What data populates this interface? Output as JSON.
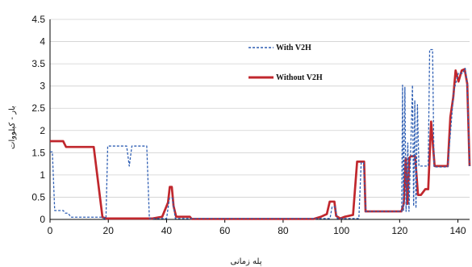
{
  "chart_data": {
    "type": "line",
    "title": "",
    "xlabel": "پله زمانی",
    "ylabel": "بار - کیلووات",
    "xlim": [
      0,
      144
    ],
    "ylim": [
      0,
      4.5
    ],
    "x_ticks": [
      "0",
      "20",
      "40",
      "60",
      "80",
      "100",
      "120",
      "140"
    ],
    "y_ticks": [
      "0",
      "0.5",
      "1",
      "1.5",
      "2",
      "2.5",
      "3",
      "3.5",
      "4",
      "4.5"
    ],
    "grid": "horizontal",
    "legend_position": "upper-right-inside",
    "series": [
      {
        "name": "With V2H",
        "color": "#2f5fb4",
        "style": "dashed",
        "points": [
          [
            0,
            1.52
          ],
          [
            0.8,
            1.52
          ],
          [
            1.6,
            0.2
          ],
          [
            4.5,
            0.2
          ],
          [
            5.3,
            0.14
          ],
          [
            6.2,
            0.14
          ],
          [
            7.2,
            0.05
          ],
          [
            18,
            0.05
          ],
          [
            18.6,
            0.02
          ],
          [
            19.2,
            0.02
          ],
          [
            19.8,
            1.65
          ],
          [
            26.3,
            1.65
          ],
          [
            27.2,
            1.2
          ],
          [
            28.1,
            1.65
          ],
          [
            33.2,
            1.65
          ],
          [
            34.1,
            0.02
          ],
          [
            40,
            0.02
          ],
          [
            41,
            0.48
          ],
          [
            42,
            0.48
          ],
          [
            43,
            0.02
          ],
          [
            96.1,
            0.02
          ],
          [
            96.8,
            0.28
          ],
          [
            97.9,
            0.28
          ],
          [
            98.6,
            0.02
          ],
          [
            106,
            0.02
          ],
          [
            106.8,
            1.28
          ],
          [
            107.6,
            1.28
          ],
          [
            108.4,
            0.18
          ],
          [
            120.7,
            0.18
          ],
          [
            121,
            3.02
          ],
          [
            121.3,
            0.18
          ],
          [
            121.8,
            2.98
          ],
          [
            122.2,
            0.18
          ],
          [
            122.8,
            1.72
          ],
          [
            123.2,
            0.18
          ],
          [
            124.4,
            3.02
          ],
          [
            124.8,
            0.3
          ],
          [
            125.2,
            2.68
          ],
          [
            125.6,
            0.25
          ],
          [
            126.1,
            2.58
          ],
          [
            126.6,
            1.2
          ],
          [
            129.8,
            1.2
          ],
          [
            130.3,
            3.82
          ],
          [
            131.3,
            3.82
          ],
          [
            131.8,
            1.18
          ],
          [
            136.5,
            1.18
          ],
          [
            138.6,
            2.9
          ],
          [
            140.2,
            3.3
          ],
          [
            141.5,
            3.28
          ],
          [
            142.5,
            3.4
          ],
          [
            143.2,
            3.05
          ],
          [
            144,
            1.2
          ]
        ]
      },
      {
        "name": "Without V2H",
        "color": "#c0272d",
        "style": "solid",
        "points": [
          [
            0,
            1.76
          ],
          [
            4.5,
            1.76
          ],
          [
            5.5,
            1.63
          ],
          [
            14.2,
            1.63
          ],
          [
            15,
            1.63
          ],
          [
            18,
            0.05
          ],
          [
            19.3,
            0.02
          ],
          [
            35,
            0.02
          ],
          [
            38.5,
            0.06
          ],
          [
            40.5,
            0.38
          ],
          [
            41.1,
            0.73
          ],
          [
            41.8,
            0.73
          ],
          [
            42.4,
            0.3
          ],
          [
            43.3,
            0.06
          ],
          [
            48,
            0.06
          ],
          [
            48.6,
            0.01
          ],
          [
            90.5,
            0.01
          ],
          [
            93,
            0.06
          ],
          [
            95,
            0.12
          ],
          [
            96,
            0.4
          ],
          [
            97.6,
            0.4
          ],
          [
            98.2,
            0.08
          ],
          [
            99.6,
            0.02
          ],
          [
            101.2,
            0.06
          ],
          [
            104,
            0.1
          ],
          [
            105.4,
            1.3
          ],
          [
            107.8,
            1.3
          ],
          [
            108.3,
            0.18
          ],
          [
            120.6,
            0.18
          ],
          [
            121.4,
            0.35
          ],
          [
            122.1,
            1.38
          ],
          [
            122.7,
            0.35
          ],
          [
            123.3,
            1.38
          ],
          [
            123.8,
            1.42
          ],
          [
            125.3,
            1.42
          ],
          [
            126.3,
            0.55
          ],
          [
            127.3,
            0.55
          ],
          [
            128.8,
            0.68
          ],
          [
            129.8,
            0.68
          ],
          [
            130.8,
            2.2
          ],
          [
            132,
            1.2
          ],
          [
            136.5,
            1.2
          ],
          [
            137.4,
            2.3
          ],
          [
            138.4,
            2.75
          ],
          [
            139.2,
            3.35
          ],
          [
            140.2,
            3.1
          ],
          [
            141.3,
            3.35
          ],
          [
            142.3,
            3.38
          ],
          [
            143.2,
            3.05
          ],
          [
            144,
            1.2
          ]
        ]
      }
    ]
  }
}
